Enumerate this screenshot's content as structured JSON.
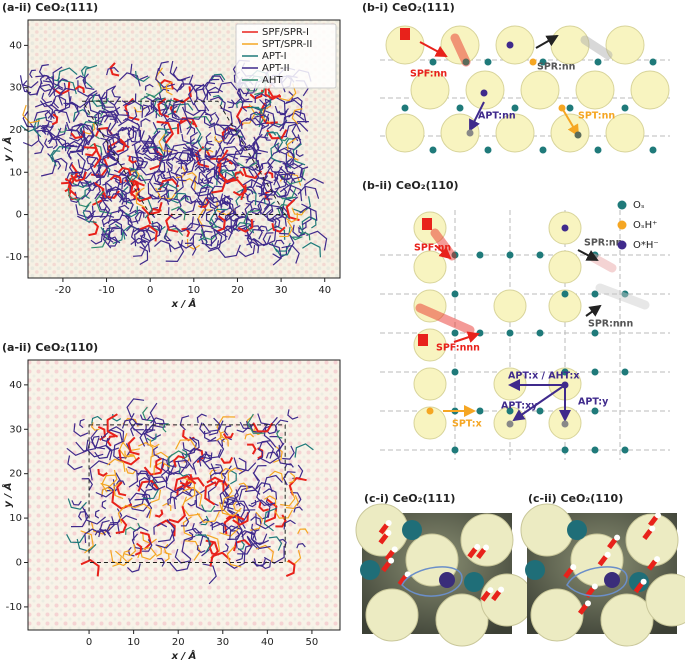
{
  "panels": [
    {
      "title": "(a-ii) CeO₂(111)",
      "xlabel": "x / Å",
      "ylabel": "y / Å",
      "xlim": [
        -28,
        43.5
      ],
      "ylim": [
        -15,
        46
      ],
      "xticks": [
        -20,
        -10,
        0,
        10,
        20,
        30,
        40
      ],
      "yticks": [
        -10,
        0,
        10,
        20,
        30,
        40
      ],
      "legend": [
        {
          "name": "SPF/SPR-I",
          "color": "#e8221b"
        },
        {
          "name": "SPT/SPR-II",
          "color": "#f5a623"
        },
        {
          "name": "APT-I",
          "color": "#1f7a7a"
        },
        {
          "name": "APT-II",
          "color": "#3f2a8c"
        },
        {
          "name": "AHT",
          "color": "#2e8b6e"
        }
      ]
    },
    {
      "title": "(a-ii) CeO₂(110)",
      "xlabel": "x / Å",
      "ylabel": "y / Å",
      "xlim": [
        -13.7,
        56.3
      ],
      "ylim": [
        -15.2,
        45.6
      ],
      "xticks": [
        0,
        10,
        20,
        30,
        40,
        50
      ],
      "yticks": [
        -10,
        0,
        10,
        20,
        30,
        40
      ]
    },
    {
      "title": "(b-i) CeO₂(111)",
      "labels": [
        "SPF:nn",
        "SPR:nn",
        "APT:nn",
        "SPT:nn"
      ]
    },
    {
      "title": "(b-ii) CeO₂(110)",
      "labels": [
        "SPF:nn",
        "SPR:nn",
        "SPR:nnn",
        "SPF:nnn",
        "APT:x / AHT:x",
        "APT:xy",
        "APT:y",
        "SPT:x"
      ],
      "legend": [
        "Oₛ",
        "OₛH⁺",
        "O*H⁻"
      ]
    },
    {
      "title": "(c-i) CeO₂(111)"
    },
    {
      "title": "(c-ii) CeO₂(110)"
    }
  ]
}
